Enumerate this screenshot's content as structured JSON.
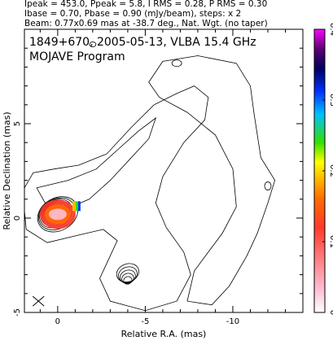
{
  "header": {
    "line1": "Ipeak = 453.0, Ppeak = 5.8, I RMS = 0.28, P RMS = 0.30",
    "line2": "Ibase = 0.70, Pbase = 0.90 (mJy/beam), steps: x 2",
    "line3": "Beam: 0.77x0.69 mas at -38.7 deg., Nat. Wgt. (no taper)"
  },
  "chart_data": {
    "type": "contour",
    "title": "1849+670, 2005-05-13, VLBA 15.4 GHz",
    "subtitle": "MOJAVE Program",
    "xlabel": "Relative R.A. (mas)",
    "ylabel": "Relative Declination (mas)",
    "xlim": [
      1.9,
      -14.0
    ],
    "ylim": [
      -5.0,
      10.0
    ],
    "x_ticks": [
      {
        "value": 0,
        "label": "0"
      },
      {
        "value": -5,
        "label": "-5"
      },
      {
        "value": -10,
        "label": "-10"
      }
    ],
    "y_ticks": [
      {
        "value": -5,
        "label": "-5"
      },
      {
        "value": 0,
        "label": "0"
      },
      {
        "value": 5,
        "label": "5"
      }
    ],
    "colorbar": {
      "min": 0,
      "max": 0.4,
      "ticks": [
        {
          "value": 0,
          "label": "0"
        },
        {
          "value": 0.1,
          "label": "0.1"
        },
        {
          "value": 0.2,
          "label": "0.2"
        },
        {
          "value": 0.3,
          "label": "0.3"
        },
        {
          "value": 0.4,
          "label": "0.4"
        }
      ],
      "colors": [
        "#ffffff",
        "#ffbfd6",
        "#ff3a2a",
        "#ff6a00",
        "#ffc000",
        "#ffff00",
        "#33e000",
        "#00c0ff",
        "#0030ff",
        "#000060",
        "#5a0070",
        "#ff00ff"
      ]
    },
    "core": {
      "x": 0.0,
      "y": 0.2
    },
    "jet_knot": {
      "x": -4.0,
      "y": -2.9
    },
    "contour_levels_mJy": [
      0.7,
      1.4,
      2.8,
      5.6,
      11.2,
      22.4,
      44.8,
      89.6,
      179.2,
      358.4
    ],
    "beam": {
      "major_mas": 0.77,
      "minor_mas": 0.69,
      "pa_deg": -38.7,
      "center": {
        "x": 1.1,
        "y": -4.4
      }
    }
  }
}
